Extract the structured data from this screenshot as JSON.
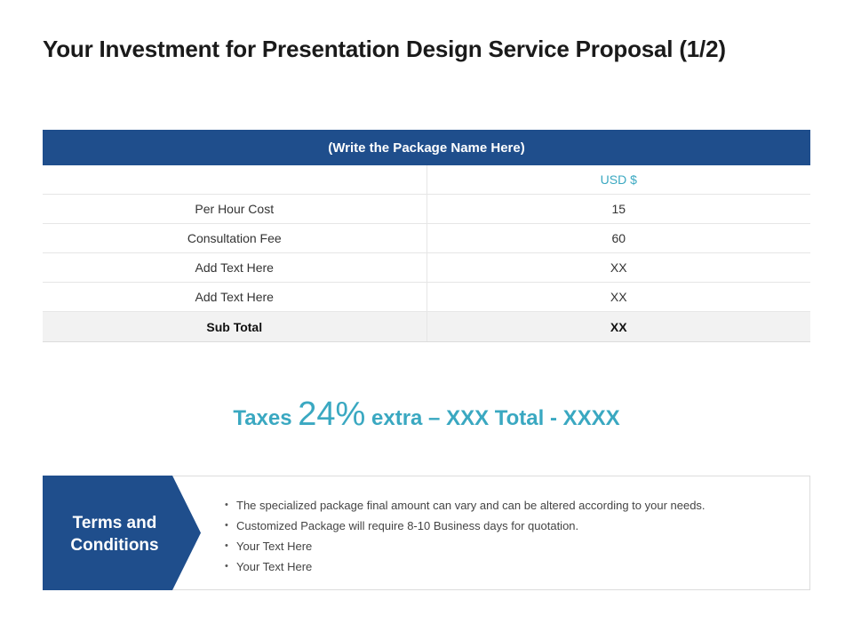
{
  "title": "Your Investment for Presentation Design Service Proposal (1/2)",
  "table": {
    "package_name": "(Write the Package Name Here)",
    "currency_label": "USD $",
    "rows": [
      {
        "label": "Per Hour Cost",
        "value": "15"
      },
      {
        "label": "Consultation Fee",
        "value": "60"
      },
      {
        "label": "Add Text Here",
        "value": "XX"
      },
      {
        "label": "Add Text Here",
        "value": "XX"
      }
    ],
    "subtotal": {
      "label": "Sub Total",
      "value": "XX"
    }
  },
  "taxes": {
    "prefix": "Taxes",
    "percent": "24%",
    "suffix": "extra – XXX Total - XXXX"
  },
  "terms": {
    "heading": "Terms and Conditions",
    "items": [
      "The specialized package final amount can vary and can be altered according to your needs.",
      "Customized Package will require 8-10 Business days for quotation.",
      "Your Text Here",
      "Your Text Here"
    ]
  },
  "colors": {
    "header_blue": "#1f4e8c",
    "accent_teal": "#3aa8c1"
  }
}
